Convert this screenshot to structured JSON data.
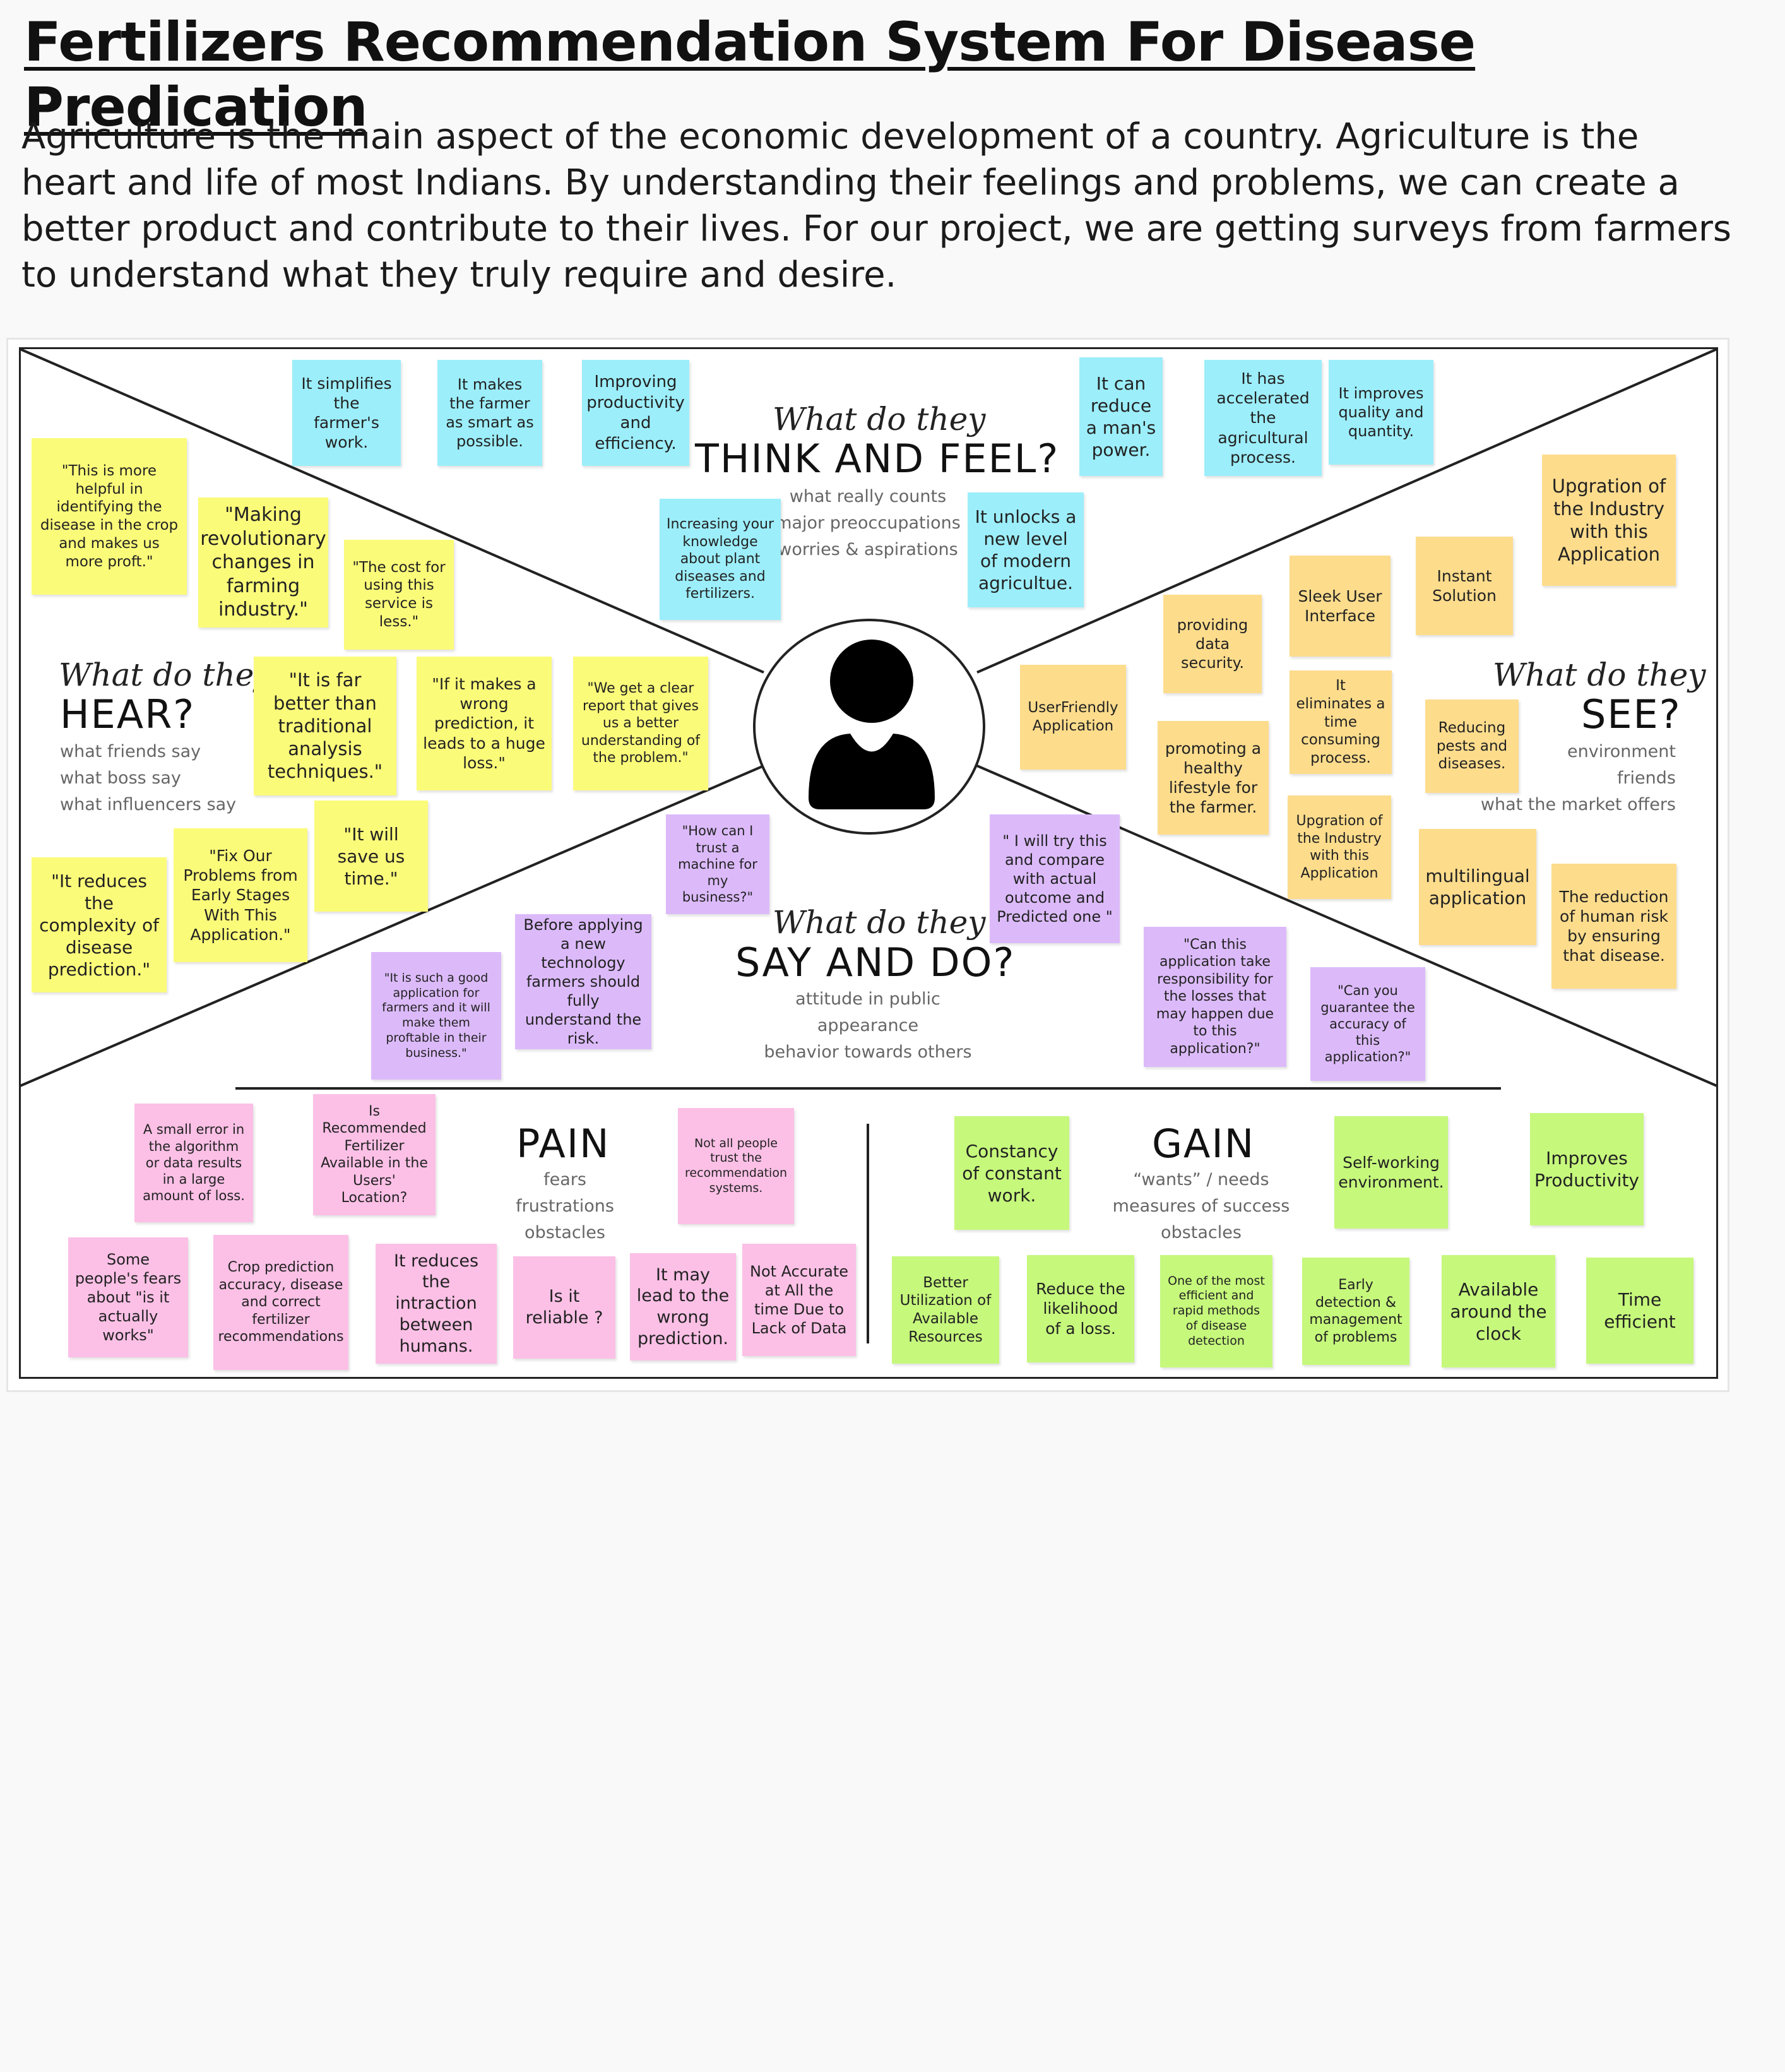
{
  "title": "Fertilizers Recommendation System For Disease Predication",
  "intro": "Agriculture is the main aspect of the economic development of a country. Agriculture is the heart and life of most Indians. By understanding their feelings and problems, we can create a better product and contribute to their lives. For our project, we are getting surveys from farmers to understand what they truly require and desire.",
  "colors": {
    "yellow": "#fbfb7a",
    "blue": "#9ceefa",
    "orange": "#fddc8c",
    "purple": "#dcbafa",
    "pink": "#fcc0e6",
    "green": "#c6f87c"
  },
  "center_icon": "user-icon",
  "quadrants": {
    "think": {
      "script": "What do they",
      "big": "THINK AND FEEL?",
      "sub": [
        "what really counts",
        "major preoccupations",
        "worries & aspirations"
      ]
    },
    "hear": {
      "script": "What do they",
      "big": "HEAR?",
      "sub": [
        "what friends say",
        "what boss say",
        "what influencers say"
      ]
    },
    "see": {
      "script": "What do they",
      "big": "SEE?",
      "sub": [
        "environment",
        "friends",
        "what the market offers"
      ]
    },
    "say": {
      "script": "What do they",
      "big": "SAY AND DO?",
      "sub": [
        "attitude in public",
        "appearance",
        "behavior towards others"
      ]
    },
    "pain": {
      "big": "PAIN",
      "sub": [
        "fears",
        "frustrations",
        "obstacles"
      ]
    },
    "gain": {
      "big": "GAIN",
      "sub": [
        "“wants” / needs",
        "measures of success",
        "obstacles"
      ]
    }
  },
  "notes": {
    "think": [
      "It simplifies the farmer's work.",
      "It makes the farmer as smart as possible.",
      "Improving productivity and efficiency.",
      "It can reduce a man's power.",
      "It has accelerated the agricultural process.",
      "It improves quality and quantity.",
      "Increasing your knowledge about plant diseases and fertilizers.",
      "It unlocks a new level of modern agricultue."
    ],
    "hear": [
      "\"This is more helpful in identifying the disease in the crop and makes us more proft.\"",
      "\"Making revolutionary changes in farming industry.\"",
      "\"The cost for using this service is less.\"",
      "\"It is far better than traditional analysis techniques.\"",
      "\"If it makes a wrong prediction, it leads to a huge loss.\"",
      "\"We get a clear report that gives us a better understanding of the problem.\"",
      "\"It will save us time.\"",
      "\"Fix Our Problems from Early Stages With This Application.\"",
      "\"It reduces the complexity of disease prediction.\""
    ],
    "see": [
      "Upgration of the Industry with this Application",
      "Instant Solution",
      "Sleek User Interface",
      "providing data security.",
      "UserFriendly Application",
      "It eliminates a time consuming process.",
      "Reducing pests and diseases.",
      "promoting a healthy lifestyle for the farmer.",
      "Upgration of the Industry with this Application",
      "multilingual application",
      "The reduction of human risk by ensuring that disease."
    ],
    "say": [
      "\"How can I trust a machine for my business?\"",
      "\" I will try this and compare with actual outcome and Predicted one \"",
      "Before applying a new technology farmers should fully understand the risk.",
      "\"It is such a good application for farmers and it will make them proftable in their business.\"",
      "\"Can this application take responsibility for the losses that may happen due to this application?\"",
      "\"Can you guarantee the accuracy of this application?\""
    ],
    "pain": [
      "A small error in the algorithm or data results in a large amount of loss.",
      "Is Recommended Fertilizer Available in the Users' Location?",
      "Not all people trust the recommendation systems.",
      "Some people's fears about \"is it actually works\"",
      "Crop prediction accuracy, disease and correct fertilizer recommendations",
      "It reduces the intraction between humans.",
      "Is it reliable ?",
      "It may lead to the wrong prediction.",
      "Not Accurate at All the time Due to Lack of Data"
    ],
    "gain": [
      "Constancy of constant work.",
      "Self-working environment.",
      "Improves Productivity",
      "Better Utilization of Available Resources",
      "Reduce the likelihood of a loss.",
      "One of the most efficient and rapid methods of disease detection",
      "Early detection & management of problems",
      "Available around the clock",
      "Time efficient"
    ]
  }
}
